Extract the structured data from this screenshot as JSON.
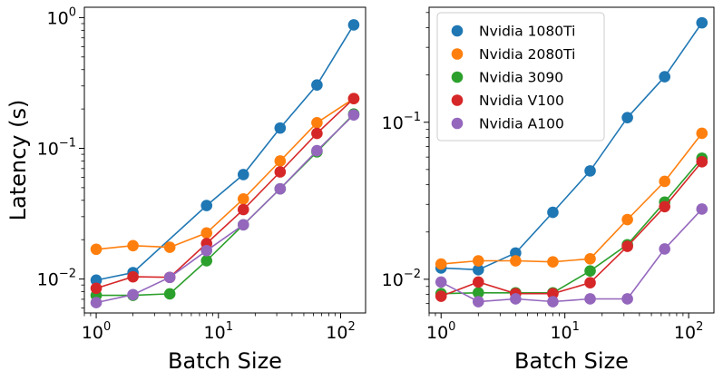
{
  "chart_data": [
    {
      "type": "line",
      "xscale": "log",
      "yscale": "log",
      "xlim": [
        0.8,
        160
      ],
      "ylim": [
        0.0055,
        1.2
      ],
      "xlabel": "Batch Size",
      "ylabel": "Latency (s)",
      "xticks": [
        {
          "value": 1,
          "label": "10^0"
        },
        {
          "value": 10,
          "label": "10^1"
        },
        {
          "value": 100,
          "label": "10^2"
        }
      ],
      "yticks": [
        {
          "value": 0.01,
          "label": "10^−2"
        },
        {
          "value": 0.1,
          "label": "10^−1"
        },
        {
          "value": 1,
          "label": "10^0"
        }
      ],
      "x": [
        1,
        2,
        4,
        8,
        16,
        32,
        64,
        128
      ],
      "series": [
        {
          "name": "Nvidia 1080Ti",
          "color": "#1f77b4",
          "values": [
            0.0098,
            0.0112,
            null,
            0.0365,
            0.063,
            0.143,
            0.305,
            0.88
          ]
        },
        {
          "name": "Nvidia 2080Ti",
          "color": "#ff7f0e",
          "values": [
            0.0169,
            0.018,
            0.0175,
            0.0225,
            0.041,
            0.08,
            0.157,
            0.24
          ]
        },
        {
          "name": "Nvidia 3090",
          "color": "#2ca02c",
          "values": [
            0.0075,
            0.0075,
            0.0077,
            0.0138,
            0.026,
            0.049,
            0.094,
            0.183
          ]
        },
        {
          "name": "Nvidia V100",
          "color": "#d62728",
          "values": [
            0.0085,
            0.0104,
            0.0103,
            0.0187,
            0.034,
            0.066,
            0.13,
            0.24
          ]
        },
        {
          "name": "Nvidia A100",
          "color": "#9467bd",
          "values": [
            0.0066,
            0.0076,
            0.0103,
            0.0165,
            0.026,
            0.049,
            0.096,
            0.18
          ]
        }
      ]
    },
    {
      "type": "line",
      "xscale": "log",
      "yscale": "log",
      "xlim": [
        0.8,
        160
      ],
      "ylim": [
        0.0061,
        0.54
      ],
      "xlabel": "Batch Size",
      "ylabel": "",
      "xticks": [
        {
          "value": 1,
          "label": "10^0"
        },
        {
          "value": 10,
          "label": "10^1"
        },
        {
          "value": 100,
          "label": "10^2"
        }
      ],
      "yticks": [
        {
          "value": 0.01,
          "label": "10^−2"
        },
        {
          "value": 0.1,
          "label": "10^−1"
        }
      ],
      "legend": "top-left",
      "x": [
        1,
        2,
        4,
        8,
        16,
        32,
        64,
        128
      ],
      "series": [
        {
          "name": "Nvidia 1080Ti",
          "color": "#1f77b4",
          "values": [
            0.0118,
            0.0115,
            0.0147,
            0.0267,
            0.049,
            0.107,
            0.195,
            0.43
          ]
        },
        {
          "name": "Nvidia 2080Ti",
          "color": "#ff7f0e",
          "values": [
            0.0125,
            0.0131,
            0.0131,
            0.0129,
            0.0135,
            0.024,
            0.042,
            0.085
          ]
        },
        {
          "name": "Nvidia 3090",
          "color": "#2ca02c",
          "values": [
            0.0081,
            0.0082,
            0.0082,
            0.0082,
            0.0113,
            0.0166,
            0.031,
            0.059
          ]
        },
        {
          "name": "Nvidia V100",
          "color": "#d62728",
          "values": [
            0.0078,
            0.0096,
            0.0081,
            0.0081,
            0.0095,
            0.0162,
            0.029,
            0.056
          ]
        },
        {
          "name": "Nvidia A100",
          "color": "#9467bd",
          "values": [
            0.0096,
            0.0072,
            0.0075,
            0.0072,
            0.0075,
            0.0075,
            0.0156,
            0.028
          ]
        }
      ]
    }
  ]
}
